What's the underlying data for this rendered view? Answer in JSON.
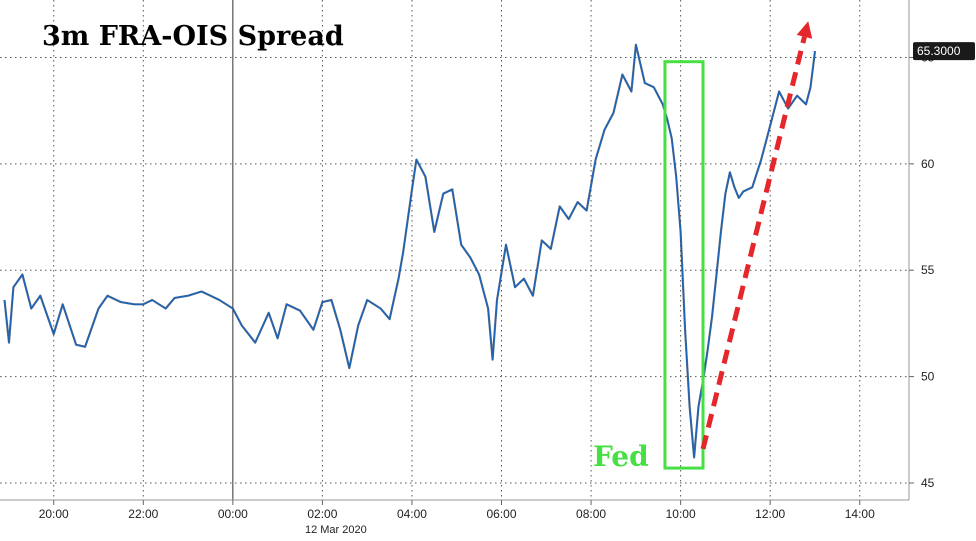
{
  "chart_data": {
    "type": "line",
    "title": "3m FRA-OIS Spread",
    "date_label": "12 Mar 2020",
    "xlabel": "",
    "ylabel": "",
    "x_tick_labels": [
      "20:00",
      "22:00",
      "00:00",
      "02:00",
      "04:00",
      "06:00",
      "08:00",
      "10:00",
      "12:00",
      "14:00"
    ],
    "x_tick_hours": [
      -4,
      -2,
      0,
      2,
      4,
      6,
      8,
      10,
      12,
      14
    ],
    "xlim": [
      -5.2,
      15.1
    ],
    "y_ticks": [
      45,
      50,
      55,
      60,
      65
    ],
    "ylim": [
      44.2,
      67.7
    ],
    "grid": true,
    "series": [
      {
        "name": "",
        "color": "#1f63b5",
        "x_hours": [
          -5.1,
          -5.0,
          -4.9,
          -4.7,
          -4.5,
          -4.3,
          -4.0,
          -3.8,
          -3.5,
          -3.3,
          -3.0,
          -2.8,
          -2.5,
          -2.2,
          -2.0,
          -1.8,
          -1.5,
          -1.3,
          -1.0,
          -0.7,
          -0.5,
          -0.3,
          0.0,
          0.2,
          0.5,
          0.8,
          1.0,
          1.2,
          1.5,
          1.8,
          2.0,
          2.2,
          2.4,
          2.6,
          2.8,
          3.0,
          3.3,
          3.5,
          3.7,
          3.8,
          4.0,
          4.1,
          4.3,
          4.5,
          4.7,
          4.9,
          5.1,
          5.3,
          5.5,
          5.7,
          5.8,
          5.9,
          6.1,
          6.3,
          6.5,
          6.7,
          6.9,
          7.1,
          7.3,
          7.5,
          7.7,
          7.9,
          8.1,
          8.3,
          8.5,
          8.7,
          8.9,
          9.0,
          9.2,
          9.4,
          9.6,
          9.7,
          9.8,
          9.9,
          10.0,
          10.1,
          10.2,
          10.3,
          10.4,
          10.5,
          10.6,
          10.7,
          10.8,
          10.9,
          11.0,
          11.1,
          11.2,
          11.3,
          11.4,
          11.6,
          11.8,
          12.0,
          12.2,
          12.4,
          12.6,
          12.8,
          12.9,
          13.0
        ],
        "values": [
          53.6,
          51.6,
          54.2,
          54.8,
          53.2,
          53.8,
          52.0,
          53.4,
          51.5,
          51.4,
          53.2,
          53.8,
          53.5,
          53.4,
          53.4,
          53.6,
          53.2,
          53.7,
          53.8,
          54.0,
          53.8,
          53.6,
          53.2,
          52.4,
          51.6,
          53.0,
          51.8,
          53.4,
          53.1,
          52.2,
          53.5,
          53.6,
          52.2,
          50.4,
          52.4,
          53.6,
          53.2,
          52.7,
          54.6,
          55.8,
          58.8,
          60.2,
          59.4,
          56.8,
          58.6,
          58.8,
          56.2,
          55.6,
          54.8,
          53.2,
          50.8,
          53.6,
          56.2,
          54.2,
          54.6,
          53.8,
          56.4,
          56.0,
          58.0,
          57.4,
          58.2,
          57.8,
          60.2,
          61.6,
          62.4,
          64.2,
          63.4,
          65.6,
          63.8,
          63.6,
          62.8,
          62.1,
          61.2,
          59.4,
          56.8,
          52.2,
          48.6,
          46.2,
          48.6,
          49.8,
          51.2,
          52.8,
          54.8,
          56.8,
          58.6,
          59.6,
          58.9,
          58.4,
          58.7,
          58.9,
          60.2,
          61.8,
          63.4,
          62.6,
          63.2,
          62.8,
          63.6,
          65.3
        ]
      }
    ],
    "last_value_label": "65.3000",
    "annotations": [
      {
        "text": "Fed",
        "color": "#46e045",
        "box_x_hours": [
          9.65,
          10.5
        ],
        "box_y": [
          45.7,
          64.8
        ]
      },
      {
        "type": "arrow",
        "style": "dashed",
        "color": "#e5262a",
        "from": [
          10.5,
          46.6
        ],
        "to": [
          12.85,
          66.7
        ]
      }
    ]
  }
}
